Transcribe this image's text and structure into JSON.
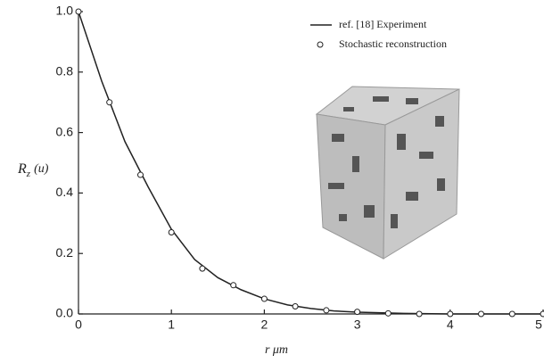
{
  "chart_data": {
    "type": "line",
    "xlabel": "r μm",
    "ylabel": {
      "symbol": "R",
      "subscript": "z",
      "argument": "(u)"
    },
    "xlim": [
      0,
      5
    ],
    "ylim": [
      0,
      1
    ],
    "xticks": [
      0,
      1,
      2,
      3,
      4,
      5
    ],
    "yticks": [
      {
        "value": 0,
        "label": "0.0"
      },
      0.2,
      0.4,
      0.6,
      0.8,
      {
        "value": 1,
        "label": "1.0"
      }
    ],
    "legend": "top-right",
    "series": [
      {
        "name": "ref. [18] Experiment",
        "color": "#222222",
        "marker": "none",
        "x": [
          0,
          0.25,
          0.5,
          0.75,
          1,
          1.25,
          1.5,
          1.75,
          2,
          2.25,
          2.5,
          2.75,
          3,
          3.5,
          4,
          5
        ],
        "values": [
          1,
          0.77,
          0.57,
          0.42,
          0.28,
          0.18,
          0.12,
          0.08,
          0.05,
          0.03,
          0.018,
          0.01,
          0.006,
          0.002,
          0,
          0
        ]
      },
      {
        "name": "Stochastic reconstruction",
        "color": "#222222",
        "marker": "circle",
        "x": [
          0,
          0.333,
          0.667,
          1,
          1.333,
          1.667,
          2,
          2.333,
          2.667,
          3,
          3.333,
          3.667,
          4,
          4.333,
          4.667,
          5
        ],
        "values": [
          1,
          0.7,
          0.46,
          0.27,
          0.15,
          0.095,
          0.05,
          0.025,
          0.012,
          0.007,
          0.002,
          0,
          0,
          0,
          0,
          0
        ]
      }
    ]
  }
}
